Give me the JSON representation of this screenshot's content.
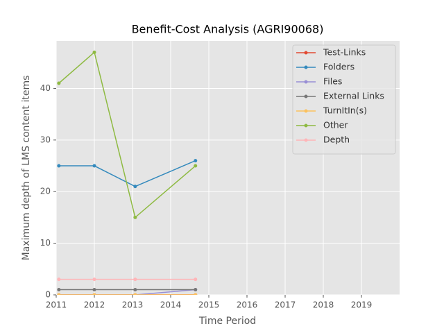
{
  "chart_data": {
    "type": "line",
    "title": "Benefit-Cost Analysis (AGRI90068)",
    "xlabel": "Time Period",
    "ylabel": "Maximum depth of LMS content items",
    "x": [
      2011.07,
      2012.0,
      2013.07,
      2014.65
    ],
    "series": [
      {
        "name": "Test-Links",
        "color": "#E24A33",
        "values": [
          0,
          0,
          0,
          0
        ]
      },
      {
        "name": "Folders",
        "color": "#348ABD",
        "values": [
          25,
          25,
          21,
          26
        ]
      },
      {
        "name": "Files",
        "color": "#988ED5",
        "values": [
          0,
          0,
          0,
          1
        ]
      },
      {
        "name": "External Links",
        "color": "#777777",
        "values": [
          1,
          1,
          1,
          1
        ]
      },
      {
        "name": "TurnItIn(s)",
        "color": "#FBC15E",
        "values": [
          0,
          0,
          0,
          0
        ]
      },
      {
        "name": "Other",
        "color": "#8EBA42",
        "values": [
          41,
          47,
          15,
          25
        ]
      },
      {
        "name": "Depth",
        "color": "#FFB5B8",
        "values": [
          3,
          3,
          3,
          3
        ]
      }
    ],
    "xlim": [
      2011,
      2020
    ],
    "xticks": [
      2011,
      2012,
      2013,
      2014,
      2015,
      2016,
      2017,
      2018,
      2019
    ],
    "ylim": [
      0,
      49.2
    ],
    "yticks": [
      0,
      10,
      20,
      30,
      40
    ],
    "grid": true,
    "legend": "upper-right"
  }
}
